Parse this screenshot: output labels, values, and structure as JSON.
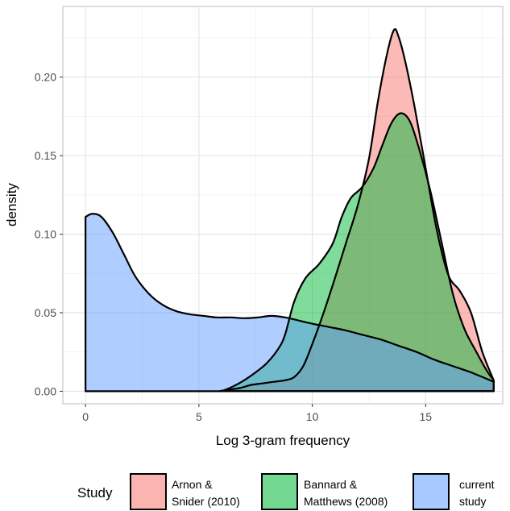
{
  "chart_data": {
    "type": "area",
    "xlabel": "Log 3-gram frequency",
    "ylabel": "density",
    "xlim": [
      -1,
      18.4
    ],
    "ylim": [
      -0.008,
      0.245
    ],
    "xticks": [
      0,
      5,
      10,
      15
    ],
    "xtick_labels": [
      "0",
      "5",
      "10",
      "15"
    ],
    "yticks": [
      0.0,
      0.05,
      0.1,
      0.15,
      0.2
    ],
    "ytick_labels": [
      "0.00",
      "0.05",
      "0.10",
      "0.15",
      "0.20"
    ],
    "grid": true,
    "legend": {
      "title": "Study",
      "position": "bottom",
      "entries": [
        {
          "lines": [
            "Arnon &",
            "Snider (2010)"
          ]
        },
        {
          "lines": [
            "Bannard &",
            "Matthews (2008)"
          ]
        },
        {
          "lines": [
            "current",
            "study"
          ]
        }
      ]
    },
    "series": [
      {
        "name": "Arnon & Snider (2010)",
        "color": "#F8766D",
        "points": [
          [
            5.9,
            0
          ],
          [
            6.3,
            0.001
          ],
          [
            6.8,
            0.002
          ],
          [
            7.3,
            0.004
          ],
          [
            7.8,
            0.005
          ],
          [
            8.3,
            0.006
          ],
          [
            8.8,
            0.007
          ],
          [
            9.2,
            0.009
          ],
          [
            9.6,
            0.016
          ],
          [
            10,
            0.03
          ],
          [
            10.5,
            0.05
          ],
          [
            11,
            0.072
          ],
          [
            11.5,
            0.095
          ],
          [
            12,
            0.118
          ],
          [
            12.5,
            0.148
          ],
          [
            12.9,
            0.185
          ],
          [
            13.3,
            0.215
          ],
          [
            13.6,
            0.23
          ],
          [
            13.8,
            0.226
          ],
          [
            14.1,
            0.21
          ],
          [
            14.5,
            0.182
          ],
          [
            15,
            0.142
          ],
          [
            15.5,
            0.102
          ],
          [
            16,
            0.074
          ],
          [
            16.5,
            0.064
          ],
          [
            17,
            0.05
          ],
          [
            17.5,
            0.025
          ],
          [
            18,
            0.007
          ]
        ]
      },
      {
        "name": "Bannard & Matthews (2008)",
        "color": "#00BA38",
        "points": [
          [
            6.0,
            0
          ],
          [
            6.5,
            0.003
          ],
          [
            7,
            0.007
          ],
          [
            7.5,
            0.012
          ],
          [
            8,
            0.018
          ],
          [
            8.5,
            0.027
          ],
          [
            8.8,
            0.036
          ],
          [
            9.2,
            0.057
          ],
          [
            9.7,
            0.072
          ],
          [
            10.3,
            0.081
          ],
          [
            10.9,
            0.094
          ],
          [
            11.3,
            0.111
          ],
          [
            11.7,
            0.123
          ],
          [
            12.2,
            0.13
          ],
          [
            12.7,
            0.142
          ],
          [
            13.1,
            0.157
          ],
          [
            13.5,
            0.171
          ],
          [
            13.9,
            0.177
          ],
          [
            14.3,
            0.172
          ],
          [
            14.7,
            0.155
          ],
          [
            15.2,
            0.128
          ],
          [
            15.7,
            0.095
          ],
          [
            16.2,
            0.062
          ],
          [
            16.7,
            0.04
          ],
          [
            17.2,
            0.026
          ],
          [
            17.7,
            0.013
          ],
          [
            18,
            0.007
          ]
        ]
      },
      {
        "name": "current study",
        "color": "#619CFF",
        "points": [
          [
            0,
            0.111
          ],
          [
            0.3,
            0.113
          ],
          [
            0.7,
            0.111
          ],
          [
            1.2,
            0.101
          ],
          [
            1.7,
            0.087
          ],
          [
            2.2,
            0.073
          ],
          [
            2.8,
            0.062
          ],
          [
            3.4,
            0.055
          ],
          [
            4,
            0.051
          ],
          [
            4.6,
            0.049
          ],
          [
            5.2,
            0.048
          ],
          [
            5.8,
            0.047
          ],
          [
            6.4,
            0.047
          ],
          [
            7,
            0.0465
          ],
          [
            7.6,
            0.047
          ],
          [
            8.2,
            0.048
          ],
          [
            8.8,
            0.047
          ],
          [
            9.4,
            0.045
          ],
          [
            10,
            0.043
          ],
          [
            10.7,
            0.041
          ],
          [
            11.4,
            0.039
          ],
          [
            12.2,
            0.036
          ],
          [
            13,
            0.033
          ],
          [
            13.8,
            0.029
          ],
          [
            14.6,
            0.025
          ],
          [
            15.4,
            0.02
          ],
          [
            16.2,
            0.016
          ],
          [
            17,
            0.012
          ],
          [
            18,
            0.006
          ]
        ]
      }
    ]
  }
}
